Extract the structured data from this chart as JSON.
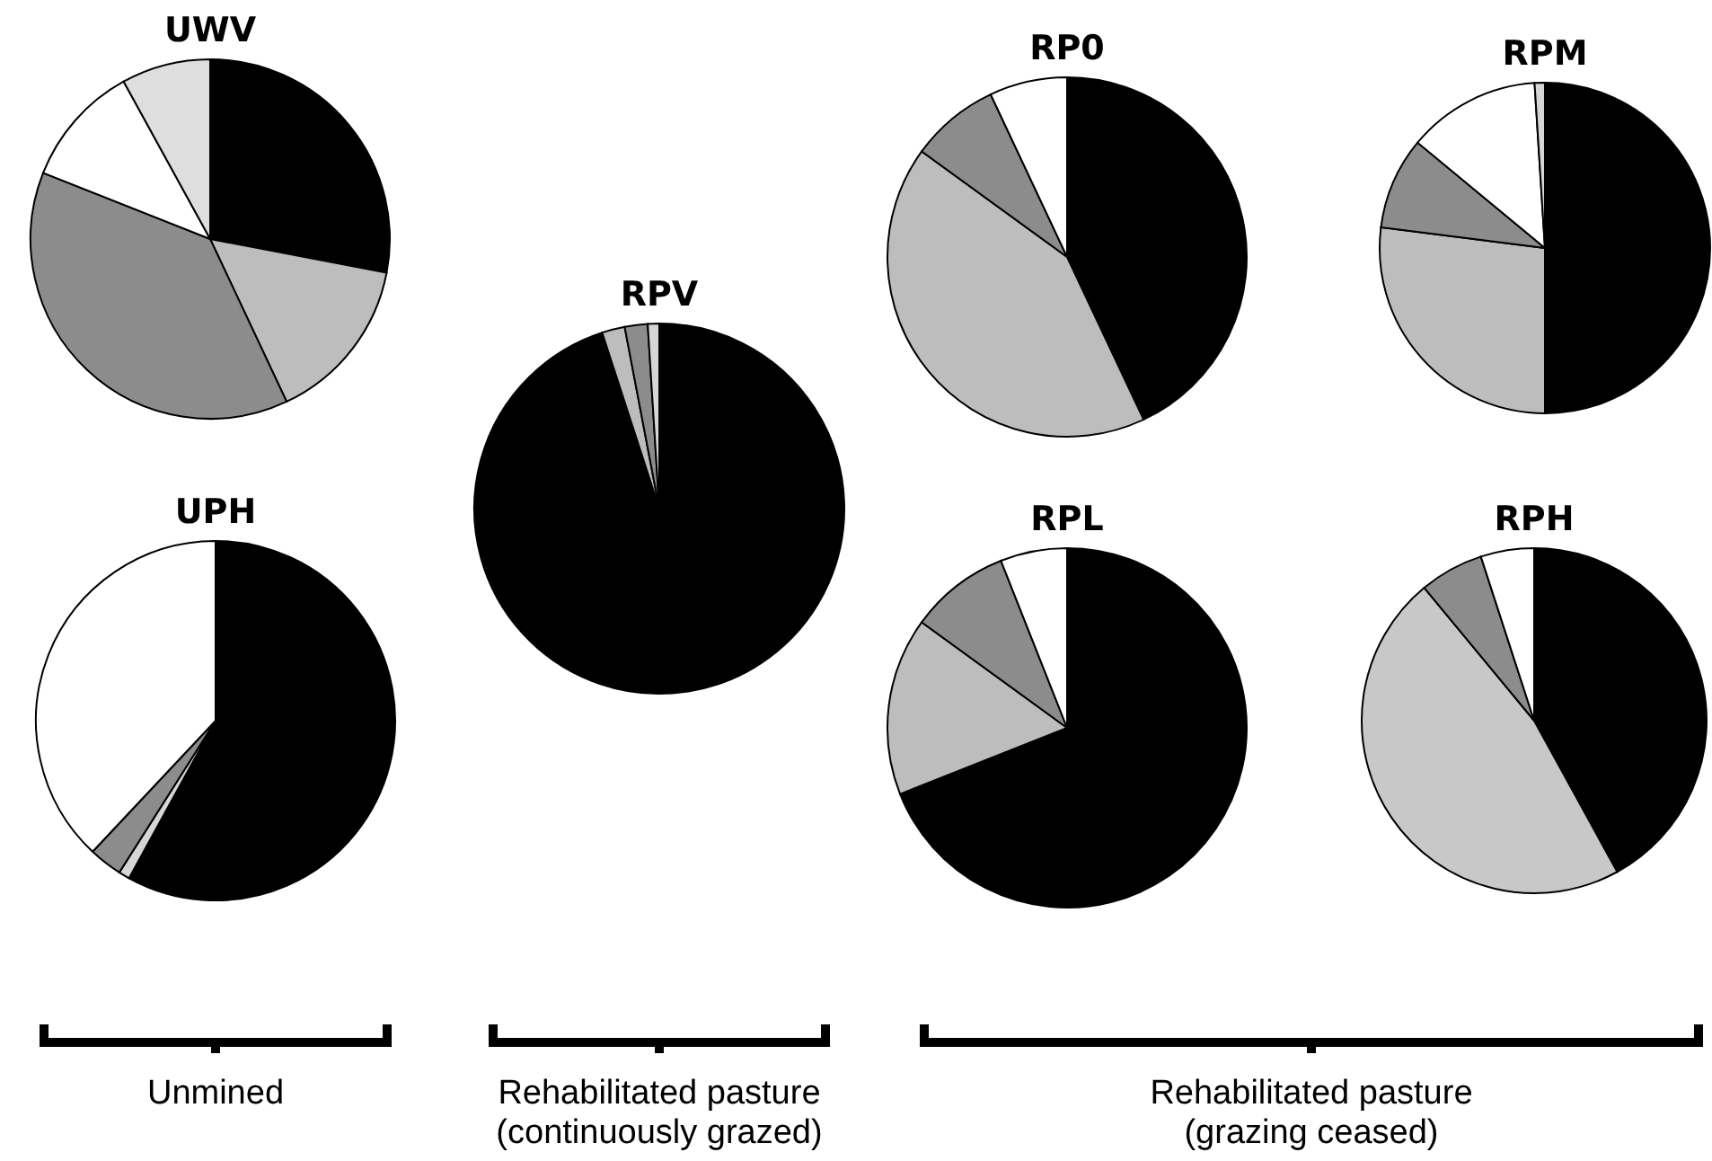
{
  "chart_data": [
    {
      "type": "pie",
      "title": "UWV",
      "categories": [
        null,
        null,
        null,
        null,
        null
      ],
      "values": [
        28,
        15,
        38,
        11,
        8
      ],
      "colors": [
        "#000000",
        "#bdbdbd",
        "#8c8c8c",
        "#ffffff",
        "#dedede"
      ]
    },
    {
      "type": "pie",
      "title": "UPH",
      "categories": [
        null,
        null,
        null,
        null
      ],
      "values": [
        58,
        1,
        3,
        38
      ],
      "colors": [
        "#000000",
        "#d6d6d6",
        "#8c8c8c",
        "#ffffff"
      ]
    },
    {
      "type": "pie",
      "title": "RPV",
      "categories": [
        null,
        null,
        null,
        null
      ],
      "values": [
        95,
        2,
        2,
        1
      ],
      "colors": [
        "#000000",
        "#bdbdbd",
        "#8c8c8c",
        "#d6d6d6"
      ]
    },
    {
      "type": "pie",
      "title": "RP0",
      "categories": [
        null,
        null,
        null,
        null
      ],
      "values": [
        43,
        42,
        8,
        7
      ],
      "colors": [
        "#000000",
        "#bdbdbd",
        "#8c8c8c",
        "#ffffff"
      ]
    },
    {
      "type": "pie",
      "title": "RPM",
      "categories": [
        null,
        null,
        null,
        null,
        null
      ],
      "values": [
        50,
        27,
        9,
        13,
        1
      ],
      "colors": [
        "#000000",
        "#bdbdbd",
        "#8c8c8c",
        "#ffffff",
        "#d6d6d6"
      ]
    },
    {
      "type": "pie",
      "title": "RPL",
      "categories": [
        null,
        null,
        null,
        null
      ],
      "values": [
        69,
        16,
        9,
        6
      ],
      "colors": [
        "#000000",
        "#bdbdbd",
        "#8c8c8c",
        "#ffffff"
      ]
    },
    {
      "type": "pie",
      "title": "RPH",
      "categories": [
        null,
        null,
        null,
        null
      ],
      "values": [
        42,
        47,
        6,
        5
      ],
      "colors": [
        "#000000",
        "#c8c8c8",
        "#8c8c8c",
        "#ffffff"
      ]
    },
    {
      "type": "other",
      "annotations": [
        "Unmined",
        "Rehabilitated pasture\n(continuously grazed)",
        "Rehabilitated pasture\n(grazing ceased)"
      ]
    }
  ]
}
